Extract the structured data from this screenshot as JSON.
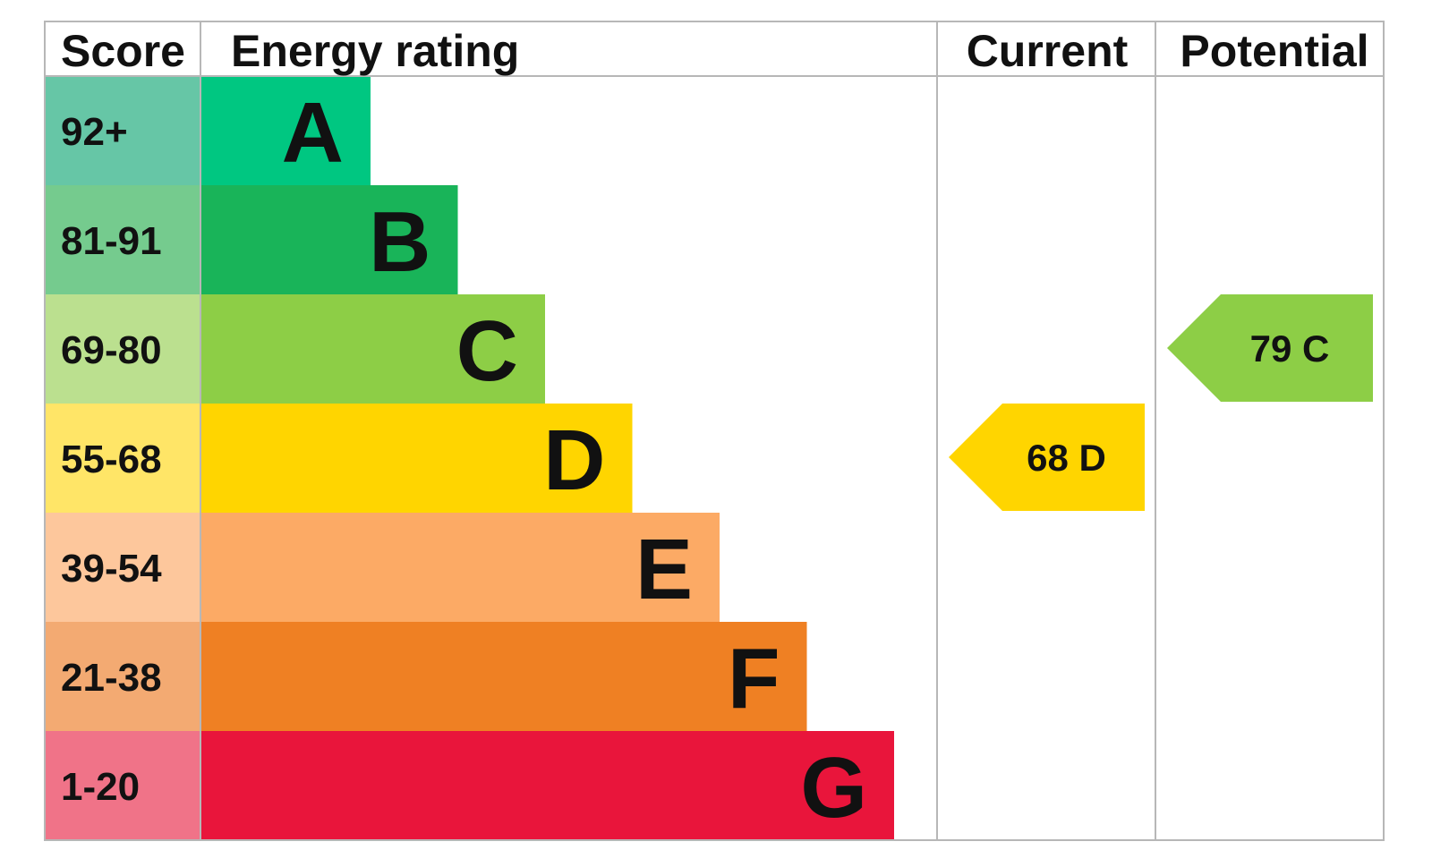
{
  "chart_data": {
    "type": "table",
    "headers": {
      "score": "Score",
      "energy_rating": "Energy rating",
      "current": "Current",
      "potential": "Potential"
    },
    "bands": [
      {
        "letter": "A",
        "score": "92+",
        "color": "#00c781",
        "score_bg": "#66c6a6"
      },
      {
        "letter": "B",
        "score": "81-91",
        "color": "#19b459",
        "score_bg": "#75cb8e"
      },
      {
        "letter": "C",
        "score": "69-80",
        "color": "#8dce46",
        "score_bg": "#bbe08f"
      },
      {
        "letter": "D",
        "score": "55-68",
        "color": "#ffd500",
        "score_bg": "#ffe567"
      },
      {
        "letter": "E",
        "score": "39-54",
        "color": "#fcaa65",
        "score_bg": "#fdc79c"
      },
      {
        "letter": "F",
        "score": "21-38",
        "color": "#ef8023",
        "score_bg": "#f3aa72"
      },
      {
        "letter": "G",
        "score": "1-20",
        "color": "#e9153b",
        "score_bg": "#f07388"
      }
    ],
    "current": {
      "value": 68,
      "band": "D",
      "label": "68  D",
      "color": "#ffd500"
    },
    "potential": {
      "value": 79,
      "band": "C",
      "label": "79  C",
      "color": "#8dce46"
    }
  }
}
